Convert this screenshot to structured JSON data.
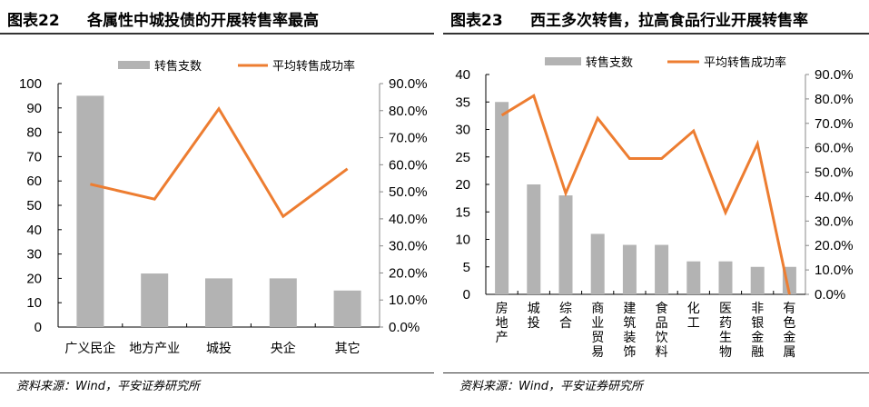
{
  "chart_data": [
    {
      "type": "bar+line",
      "label": "图表22",
      "title": "各属性中城投债的开展转售率最高",
      "categories": [
        "广义民企",
        "地方产业",
        "城投",
        "央企",
        "其它"
      ],
      "series": [
        {
          "name": "转售支数",
          "type": "bar",
          "axis": "left",
          "color": "#b3b3b3",
          "values": [
            95,
            22,
            20,
            20,
            15
          ]
        },
        {
          "name": "平均转售成功率",
          "type": "line",
          "axis": "right",
          "color": "#ed7d31",
          "values": [
            52.8,
            47.3,
            80.7,
            40.9,
            58.5
          ]
        }
      ],
      "y_left": {
        "range": [
          0,
          100
        ],
        "ticks": [
          "0",
          "10",
          "20",
          "30",
          "40",
          "50",
          "60",
          "70",
          "80",
          "90",
          "100"
        ]
      },
      "y_right": {
        "range": [
          0,
          90
        ],
        "ticks": [
          "0.0%",
          "10.0%",
          "20.0%",
          "30.0%",
          "40.0%",
          "50.0%",
          "60.0%",
          "70.0%",
          "80.0%",
          "90.0%"
        ]
      },
      "legend": "top",
      "grid": false,
      "source": "资料来源：Wind，平安证券研究所"
    },
    {
      "type": "bar+line",
      "label": "图表23",
      "title": "西王多次转售，拉高食品行业开展转售率",
      "categories": [
        "房地产",
        "城投",
        "综合",
        "商业贸易",
        "建筑装饰",
        "食品饮料",
        "化工",
        "医药生物",
        "非银金融",
        "有色金属"
      ],
      "series": [
        {
          "name": "转售支数",
          "type": "bar",
          "axis": "left",
          "color": "#b3b3b3",
          "values": [
            35,
            20,
            18,
            11,
            9,
            9,
            6,
            6,
            5,
            5
          ]
        },
        {
          "name": "平均转售成功率",
          "type": "line",
          "axis": "right",
          "color": "#ed7d31",
          "values": [
            73.3,
            81.3,
            41.4,
            72.1,
            55.6,
            55.6,
            66.9,
            33.5,
            61.6,
            0
          ]
        }
      ],
      "y_left": {
        "range": [
          0,
          40
        ],
        "ticks": [
          "0",
          "5",
          "10",
          "15",
          "20",
          "25",
          "30",
          "35",
          "40"
        ]
      },
      "y_right": {
        "range": [
          0,
          90
        ],
        "ticks": [
          "0.0%",
          "10.0%",
          "20.0%",
          "30.0%",
          "40.0%",
          "50.0%",
          "60.0%",
          "70.0%",
          "80.0%",
          "90.0%"
        ]
      },
      "legend": "top",
      "grid": false,
      "source": "资料来源：Wind，平安证券研究所"
    }
  ]
}
